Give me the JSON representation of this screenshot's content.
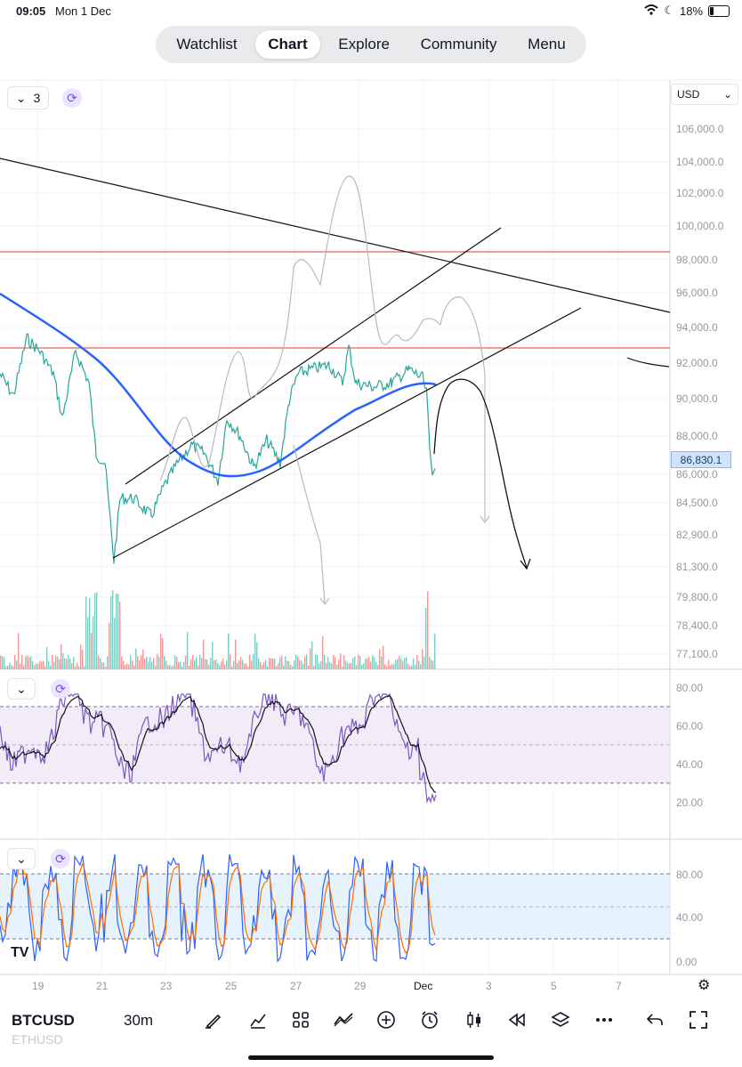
{
  "status_bar": {
    "time": "09:05",
    "date": "Mon 1 Dec",
    "battery": "18%"
  },
  "nav": {
    "tabs": [
      {
        "label": "Watchlist",
        "active": false
      },
      {
        "label": "Chart",
        "active": true
      },
      {
        "label": "Explore",
        "active": false
      },
      {
        "label": "Community",
        "active": false
      },
      {
        "label": "Menu",
        "active": false
      }
    ]
  },
  "main_pane": {
    "collapse_count": "3",
    "currency": "USD",
    "price_axis": [
      "106,000.0",
      "104,000.0",
      "102,000.0",
      "100,000.0",
      "98,000.0",
      "96,000.0",
      "94,000.0",
      "92,000.0",
      "90,000.0",
      "88,000.0",
      "86,000.0",
      "84,500.0",
      "82,900.0",
      "81,300.0",
      "79,800.0",
      "78,400.0",
      "77,100.0"
    ],
    "last_price": "86,830.1",
    "colors": {
      "up": "#26a69a",
      "down": "#ef5350",
      "ma": "#2962ff",
      "level": "#e53935"
    }
  },
  "rsi_pane": {
    "axis": [
      "80.00",
      "60.00",
      "40.00",
      "20.00"
    ],
    "colors": {
      "rsi": "#7e57c2",
      "band": "#ede7f6"
    }
  },
  "stoch_pane": {
    "axis": [
      "80.00",
      "40.00",
      "0.00"
    ],
    "colors": {
      "k": "#2962ff",
      "d": "#ff6d00",
      "band": "#e3f2fd"
    }
  },
  "time_axis": [
    "19",
    "21",
    "23",
    "25",
    "27",
    "29",
    "Dec",
    "3",
    "5",
    "7"
  ],
  "bottom_bar": {
    "symbol": "BTCUSD",
    "symbol_secondary": "ETHUSD",
    "interval": "30m"
  },
  "tv_logo": "TV"
}
